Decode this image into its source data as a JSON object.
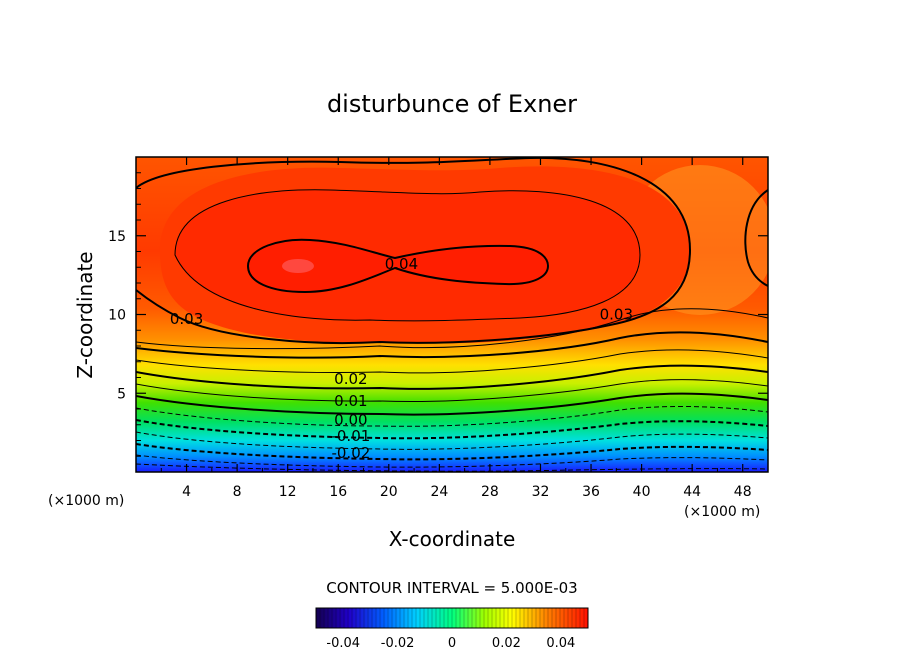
{
  "chart_data": {
    "type": "contour",
    "title": "disturbunce of Exner",
    "xlabel": "X-coordinate",
    "ylabel": "Z-coordinate",
    "x_unit": "(×1000 m)",
    "y_unit": "(×1000 m)",
    "xlim": [
      0,
      50
    ],
    "ylim": [
      0,
      20
    ],
    "x_ticks": [
      4,
      8,
      12,
      16,
      20,
      24,
      28,
      32,
      36,
      40,
      44,
      48
    ],
    "y_ticks": [
      5,
      10,
      15
    ],
    "contour_interval_text": "CONTOUR INTERVAL = 5.000E-03",
    "contour_interval": 0.005,
    "value_range": [
      -0.05,
      0.05
    ],
    "contour_labels": [
      {
        "text": "0.04",
        "x": 21,
        "z": 13.2
      },
      {
        "text": "0.03",
        "x": 4,
        "z": 9.7
      },
      {
        "text": "0.03",
        "x": 38,
        "z": 10.0
      },
      {
        "text": "0.02",
        "x": 17,
        "z": 5.9
      },
      {
        "text": "0.01",
        "x": 17,
        "z": 4.5
      },
      {
        "text": "0.00",
        "x": 17,
        "z": 3.3
      },
      {
        "text": "-0.01",
        "x": 17,
        "z": 2.3
      },
      {
        "text": "-0.02",
        "x": 17,
        "z": 1.2
      }
    ],
    "colorbar": {
      "tick_labels": [
        "-0.04",
        "-0.02",
        "0",
        "0.02",
        "0.04"
      ],
      "tick_values": [
        -0.04,
        -0.02,
        0,
        0.02,
        0.04
      ],
      "colors": [
        "#1a0066",
        "#2000c8",
        "#0050ff",
        "#00c8ff",
        "#00ffc0",
        "#40ff60",
        "#c8ff00",
        "#ffff00",
        "#ffb000",
        "#ff6000",
        "#ff1c00"
      ]
    }
  }
}
